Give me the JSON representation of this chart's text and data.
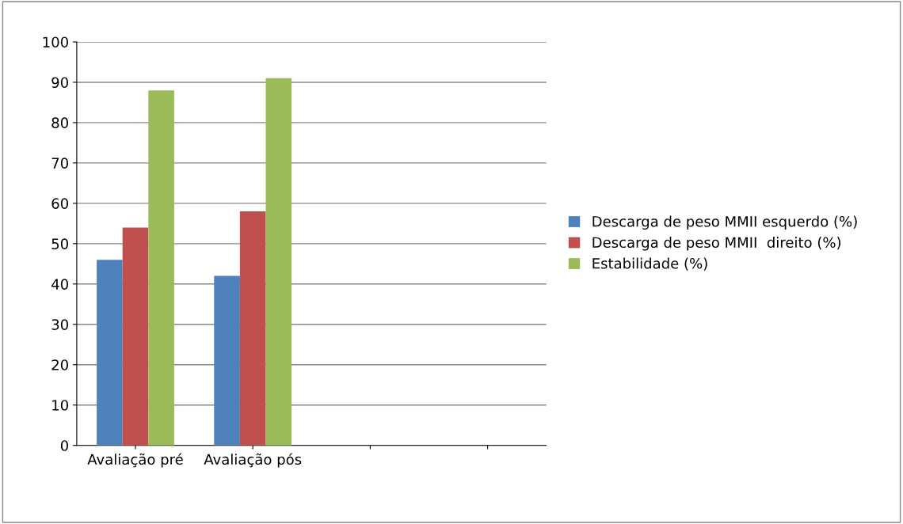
{
  "chart_data": {
    "type": "bar",
    "categories": [
      "Avaliação pré",
      "Avaliação pós",
      null,
      null
    ],
    "series": [
      {
        "name": "Descarga de peso MMII esquerdo (%)",
        "color": "#4f81bd",
        "values": [
          46,
          42,
          null,
          null
        ]
      },
      {
        "name": "Descarga de peso MMII  direito (%)",
        "color": "#c0504d",
        "values": [
          54,
          58,
          null,
          null
        ]
      },
      {
        "name": "Estabilidade (%)",
        "color": "#9bbb59",
        "values": [
          88,
          91,
          null,
          null
        ]
      }
    ],
    "ylim": [
      0,
      100
    ],
    "yticks": [
      0,
      10,
      20,
      30,
      40,
      50,
      60,
      70,
      80,
      90,
      100
    ],
    "grid": "y",
    "legend": "right"
  }
}
